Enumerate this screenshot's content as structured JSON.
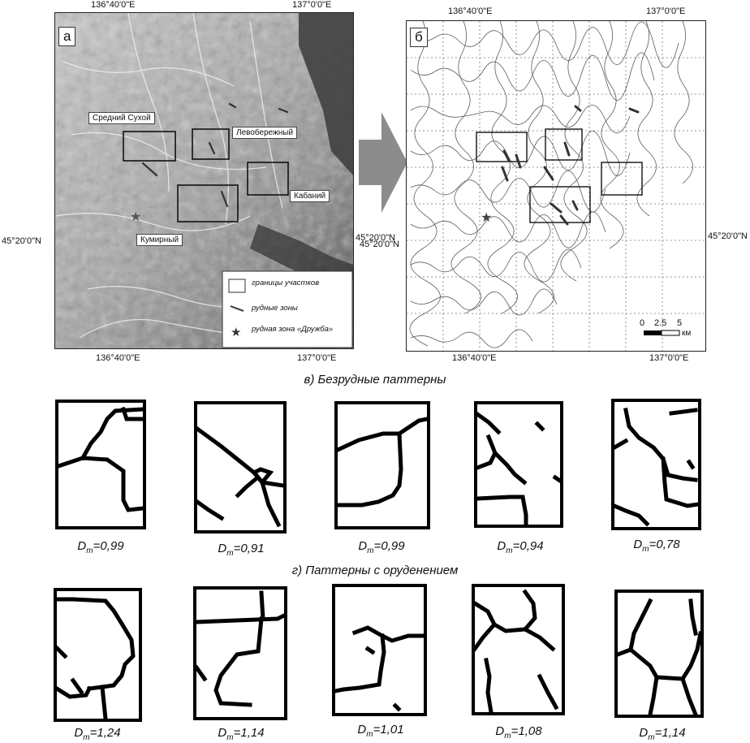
{
  "panel_a": {
    "label": "а",
    "top_coords": [
      "136°40'0\"E",
      "137°0'0\"E"
    ],
    "bottom_coords": [
      "136°40'0\"E",
      "137°0'0\"E"
    ],
    "left_coord": "45°20'0\"N",
    "right_coord": "45°20'0\"N",
    "sites": [
      "Средний Сухой",
      "Левобережный",
      "Кабаний",
      "Кумирный"
    ],
    "legend": [
      "границы участков",
      "рудные зоны",
      "рудная зона «Дружба»"
    ]
  },
  "panel_b": {
    "label": "б",
    "top_coords": [
      "136°40'0\"E",
      "137°0'0\"E"
    ],
    "bottom_coords": [
      "136°40'0\"E",
      "137°0'0\"E"
    ],
    "left_coord": "45°20'0\"N",
    "right_coord": "45°20'0\"N",
    "scale": {
      "ticks": [
        "0",
        "2.5",
        "5"
      ],
      "unit": "км"
    }
  },
  "section_v": "в) Безрудные паттерны",
  "section_g": "г) Паттерны с оруденением",
  "dm_symbol": "D",
  "dm_sub": "m",
  "barren_values": [
    "=0,99",
    "=0,91",
    "=0,99",
    "=0,94",
    "=0,78"
  ],
  "ore_values": [
    "=1,24",
    "=1,14",
    "=1,01",
    "=1,08",
    "=1,14"
  ],
  "colors": {
    "line": "#000000",
    "relief_dark": "#3a3a3a",
    "relief_light": "#e8e8e8"
  }
}
